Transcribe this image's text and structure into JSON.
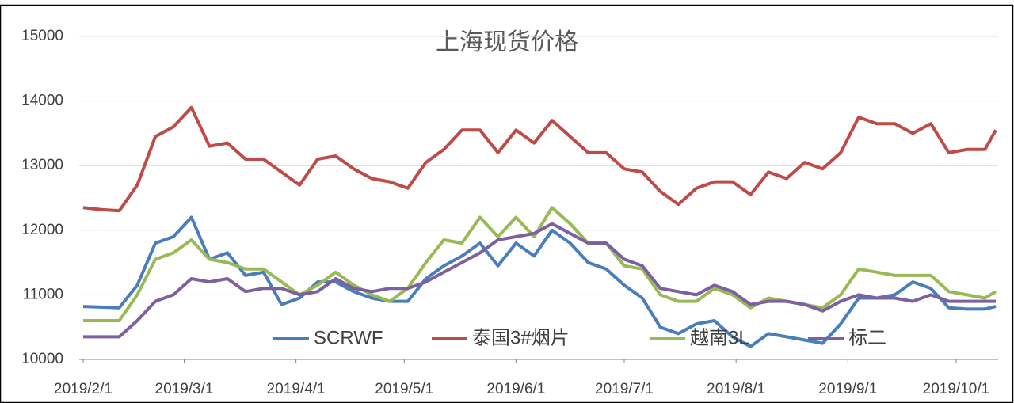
{
  "chart_data": {
    "type": "line",
    "title": "上海现货价格",
    "x": [
      "2019/2/1",
      "2019/2/6",
      "2019/2/11",
      "2019/2/16",
      "2019/2/21",
      "2019/2/26",
      "2019/3/3",
      "2019/3/8",
      "2019/3/13",
      "2019/3/18",
      "2019/3/23",
      "2019/3/28",
      "2019/4/2",
      "2019/4/7",
      "2019/4/12",
      "2019/4/17",
      "2019/4/22",
      "2019/4/27",
      "2019/5/2",
      "2019/5/7",
      "2019/5/12",
      "2019/5/17",
      "2019/5/22",
      "2019/5/27",
      "2019/6/1",
      "2019/6/6",
      "2019/6/11",
      "2019/6/16",
      "2019/6/21",
      "2019/6/26",
      "2019/7/1",
      "2019/7/6",
      "2019/7/11",
      "2019/7/16",
      "2019/7/21",
      "2019/7/26",
      "2019/7/31",
      "2019/8/5",
      "2019/8/10",
      "2019/8/15",
      "2019/8/20",
      "2019/8/25",
      "2019/8/30",
      "2019/9/4",
      "2019/9/9",
      "2019/9/14",
      "2019/9/19",
      "2019/9/24",
      "2019/9/29",
      "2019/10/4",
      "2019/10/9",
      "2019/10/12"
    ],
    "series": [
      {
        "name": "SCRWF",
        "color": "#4a7ebb",
        "values": [
          10820,
          10810,
          10800,
          11150,
          11800,
          11900,
          12200,
          11550,
          11650,
          11300,
          11350,
          10850,
          10950,
          11200,
          11200,
          11050,
          10950,
          10900,
          10900,
          11250,
          11450,
          11600,
          11800,
          11450,
          11800,
          11600,
          12000,
          11800,
          11500,
          11400,
          11150,
          10950,
          10500,
          10400,
          10550,
          10600,
          10350,
          10200,
          10400,
          10350,
          10300,
          10250,
          10550,
          10950,
          10950,
          11000,
          11200,
          11100,
          10800,
          10780,
          10780,
          10820
        ]
      },
      {
        "name": "泰国3#烟片",
        "color": "#be4b48",
        "values": [
          12350,
          12320,
          12300,
          12700,
          13450,
          13600,
          13900,
          13300,
          13350,
          13100,
          13100,
          12900,
          12700,
          13100,
          13150,
          12950,
          12800,
          12750,
          12650,
          13050,
          13250,
          13550,
          13550,
          13200,
          13550,
          13350,
          13700,
          13450,
          13200,
          13200,
          12950,
          12900,
          12600,
          12400,
          12650,
          12750,
          12750,
          12550,
          12900,
          12800,
          13050,
          12950,
          13200,
          13750,
          13650,
          13650,
          13500,
          13650,
          13200,
          13250,
          13250,
          13550
        ]
      },
      {
        "name": "越南3L",
        "color": "#98b954",
        "values": [
          10600,
          10600,
          10600,
          11000,
          11550,
          11650,
          11850,
          11550,
          11500,
          11400,
          11400,
          11200,
          11000,
          11150,
          11350,
          11150,
          11000,
          10900,
          11100,
          11500,
          11850,
          11800,
          12200,
          11900,
          12200,
          11900,
          12350,
          12100,
          11800,
          11800,
          11450,
          11400,
          11000,
          10900,
          10900,
          11100,
          11000,
          10800,
          10950,
          10900,
          10850,
          10800,
          11000,
          11400,
          11350,
          11300,
          11300,
          11300,
          11050,
          11000,
          10950,
          11050
        ]
      },
      {
        "name": "标二",
        "color": "#7d60a0",
        "values": [
          10350,
          10350,
          10350,
          10600,
          10900,
          11000,
          11250,
          11200,
          11250,
          11050,
          11100,
          11100,
          11000,
          11050,
          11250,
          11100,
          11050,
          11100,
          11100,
          11200,
          11350,
          11500,
          11650,
          11850,
          11900,
          11950,
          12100,
          11950,
          11800,
          11800,
          11550,
          11450,
          11100,
          11050,
          11000,
          11150,
          11050,
          10850,
          10900,
          10900,
          10850,
          10750,
          10900,
          11000,
          10950,
          10950,
          10900,
          11000,
          10900,
          10900,
          10900,
          10900
        ]
      }
    ],
    "xlim": [
      "2019/2/1",
      "2019/10/12"
    ],
    "xticks": [
      "2019/2/1",
      "2019/3/1",
      "2019/4/1",
      "2019/5/1",
      "2019/6/1",
      "2019/7/1",
      "2019/8/1",
      "2019/9/1",
      "2019/10/1"
    ],
    "ylim": [
      10000,
      15000
    ],
    "yticks": [
      10000,
      11000,
      12000,
      13000,
      14000,
      15000
    ],
    "grid": true,
    "legend": "bottom"
  }
}
